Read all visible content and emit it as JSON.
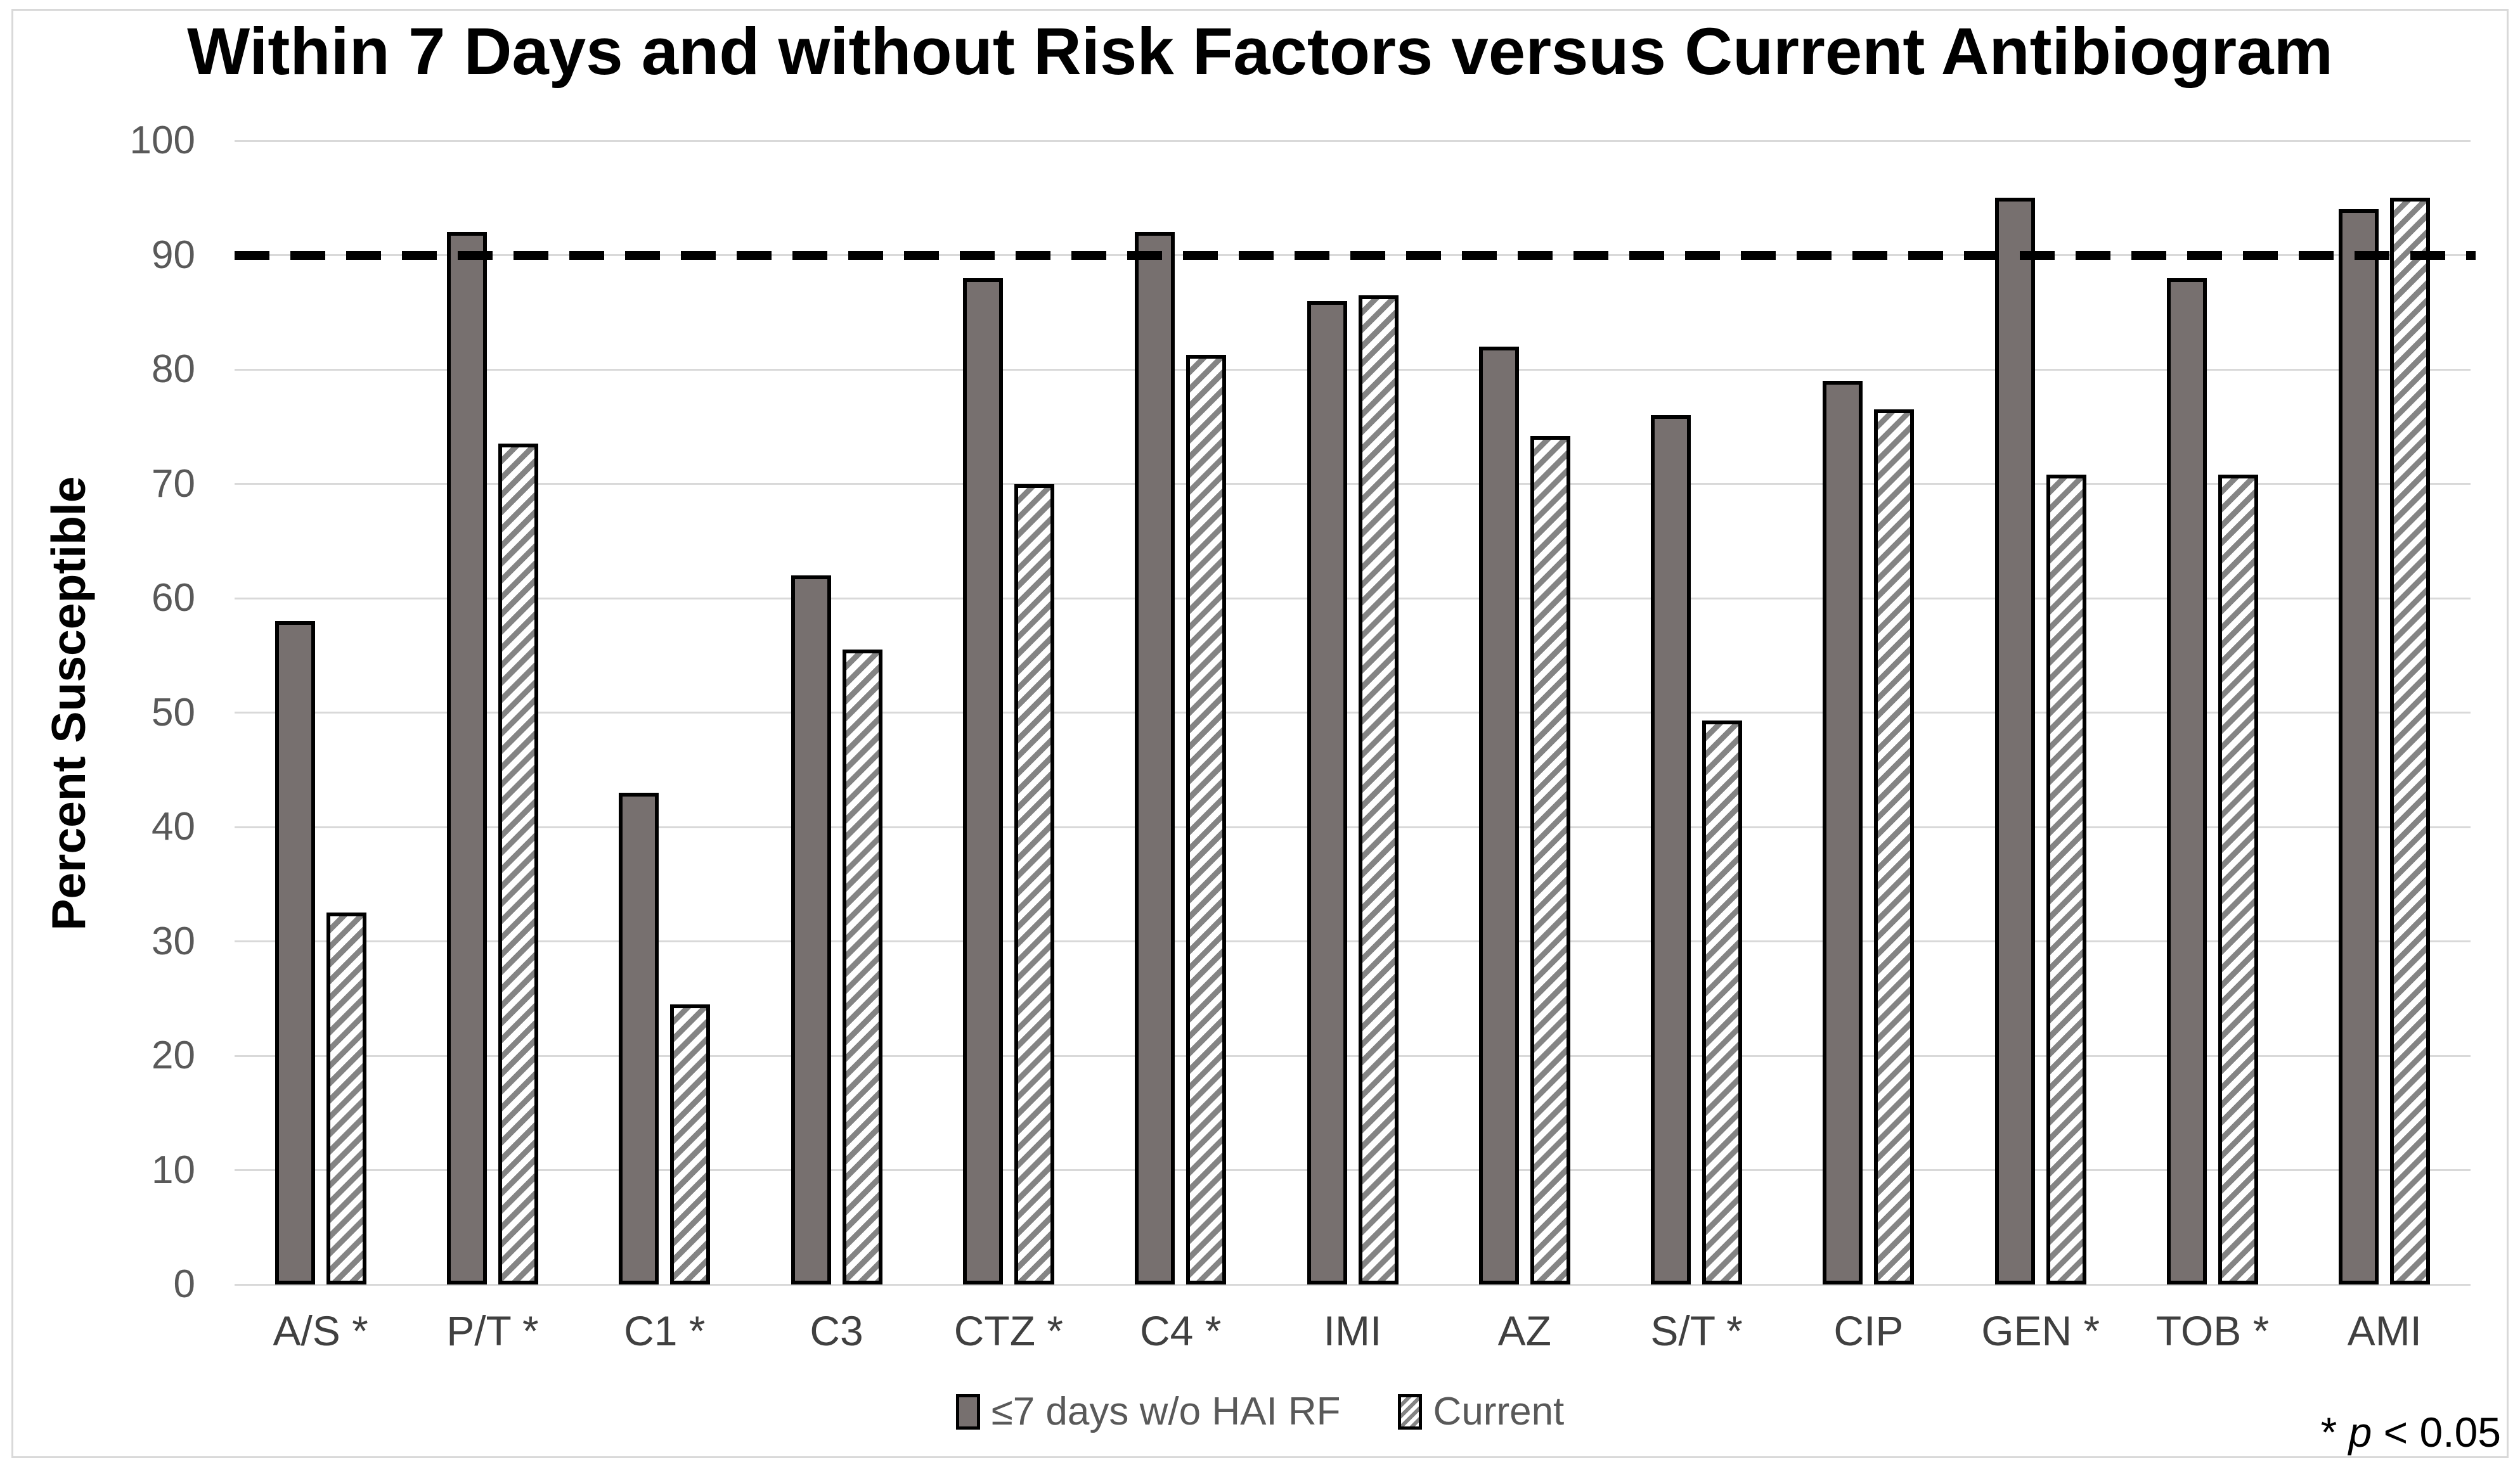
{
  "chart_data": {
    "type": "bar",
    "title": "Within 7 Days and without Risk Factors versus Current Antibiogram",
    "ylabel": "Percent Susceptible",
    "xlabel": "",
    "ylim": [
      0,
      100
    ],
    "y_ticks": [
      0,
      10,
      20,
      30,
      40,
      50,
      60,
      70,
      80,
      90,
      100
    ],
    "grid": true,
    "threshold_line": {
      "value": 90,
      "style": "dashed",
      "color": "#000000"
    },
    "categories": [
      "A/S *",
      "P/T *",
      "C1 *",
      "C3",
      "CTZ *",
      "C4 *",
      "IMI",
      "AZ",
      "S/T *",
      "CIP",
      "GEN *",
      "TOB *",
      "AMI"
    ],
    "series": [
      {
        "name": "≤7 days w/o HAI RF",
        "style": "solid",
        "color": "#77706F",
        "values": [
          58,
          92,
          43,
          62,
          88,
          92,
          86,
          82,
          76,
          79,
          95,
          88,
          94
        ]
      },
      {
        "name": "Current",
        "style": "hatched",
        "color": "#848484",
        "values": [
          32.5,
          73.5,
          24.5,
          55.5,
          70,
          81.3,
          86.5,
          74.2,
          49.3,
          76.5,
          70.8,
          70.8,
          95
        ]
      }
    ],
    "legend_position": "bottom-center",
    "footnote": {
      "star": "*",
      "p_var": "p",
      "rest": "< 0.05"
    }
  },
  "colors": {
    "solid_bar_fill": "#77706F",
    "hatch_stripe": "#848484",
    "gridline": "#d9d9d9",
    "frame_border": "#d9d9d9",
    "y_tick_text": "#595959",
    "x_label_text": "#404040",
    "title_text": "#000000",
    "threshold_line": "#000000"
  }
}
